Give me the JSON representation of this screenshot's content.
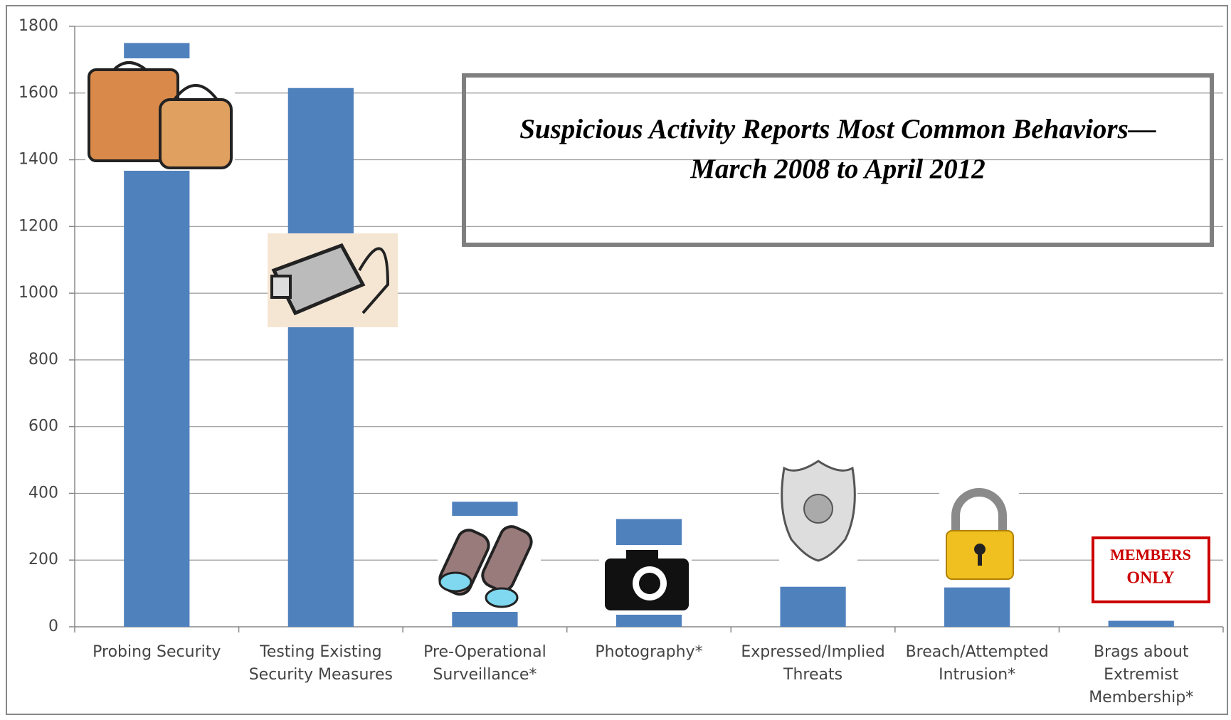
{
  "chart_data": {
    "type": "bar",
    "title": "Suspicious Activity Reports Most Common Behaviors—March 2008 to April 2012",
    "categories": [
      "Probing Security",
      "Testing Existing Security Measures",
      "Pre-Operational Surveillance*",
      "Photography*",
      "Expressed/Implied Threats",
      "Breach/Attempted Intrusion*",
      "Brags about Extremist Membership*"
    ],
    "values": [
      1750,
      1615,
      375,
      323,
      120,
      118,
      18
    ],
    "color": "#4f81bd",
    "ylim": [
      0,
      1800
    ],
    "yticks": [
      0,
      200,
      400,
      600,
      800,
      1000,
      1200,
      1400,
      1600,
      1800
    ],
    "grid": true
  }
}
